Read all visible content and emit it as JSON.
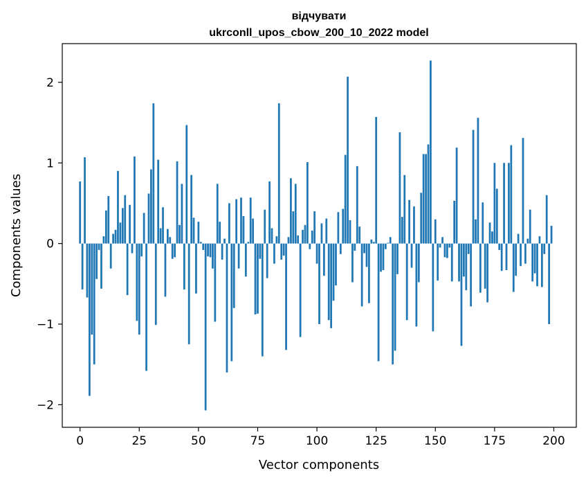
{
  "chart_data": {
    "type": "bar",
    "title": [
      "відчувати",
      "ukrconll_upos_cbow_200_10_2022 model"
    ],
    "xlabel": "Vector components",
    "ylabel": "Components values",
    "xlim": [
      -7.5,
      209.5
    ],
    "ylim": [
      -2.28,
      2.48
    ],
    "xticks": [
      0,
      25,
      50,
      75,
      100,
      125,
      150,
      175,
      200
    ],
    "yticks": [
      -2,
      -1,
      0,
      1,
      2
    ],
    "ytick_labels": [
      "−2",
      "−1",
      "0",
      "1",
      "2"
    ],
    "bar_color": "#1f77b4",
    "x": [
      0,
      1,
      2,
      3,
      4,
      5,
      6,
      7,
      8,
      9,
      10,
      11,
      12,
      13,
      14,
      15,
      16,
      17,
      18,
      19,
      20,
      21,
      22,
      23,
      24,
      25,
      26,
      27,
      28,
      29,
      30,
      31,
      32,
      33,
      34,
      35,
      36,
      37,
      38,
      39,
      40,
      41,
      42,
      43,
      44,
      45,
      46,
      47,
      48,
      49,
      50,
      51,
      52,
      53,
      54,
      55,
      56,
      57,
      58,
      59,
      60,
      61,
      62,
      63,
      64,
      65,
      66,
      67,
      68,
      69,
      70,
      71,
      72,
      73,
      74,
      75,
      76,
      77,
      78,
      79,
      80,
      81,
      82,
      83,
      84,
      85,
      86,
      87,
      88,
      89,
      90,
      91,
      92,
      93,
      94,
      95,
      96,
      97,
      98,
      99,
      100,
      101,
      102,
      103,
      104,
      105,
      106,
      107,
      108,
      109,
      110,
      111,
      112,
      113,
      114,
      115,
      116,
      117,
      118,
      119,
      120,
      121,
      122,
      123,
      124,
      125,
      126,
      127,
      128,
      129,
      130,
      131,
      132,
      133,
      134,
      135,
      136,
      137,
      138,
      139,
      140,
      141,
      142,
      143,
      144,
      145,
      146,
      147,
      148,
      149,
      150,
      151,
      152,
      153,
      154,
      155,
      156,
      157,
      158,
      159,
      160,
      161,
      162,
      163,
      164,
      165,
      166,
      167,
      168,
      169,
      170,
      171,
      172,
      173,
      174,
      175,
      176,
      177,
      178,
      179,
      180,
      181,
      182,
      183,
      184,
      185,
      186,
      187,
      188,
      189,
      190,
      191,
      192,
      193,
      194,
      195,
      196,
      197,
      198,
      199
    ],
    "values": [
      0.77,
      -0.57,
      1.07,
      -0.67,
      -1.89,
      -1.13,
      -1.5,
      -0.44,
      -0.08,
      -0.56,
      0.09,
      0.41,
      0.59,
      -0.31,
      0.12,
      0.17,
      0.9,
      0.26,
      0.44,
      0.6,
      -0.64,
      0.48,
      -0.12,
      1.08,
      -0.96,
      -1.13,
      -0.16,
      0.38,
      -1.58,
      0.62,
      0.92,
      1.74,
      -1.01,
      1.04,
      0.19,
      0.45,
      -0.66,
      0.18,
      0.08,
      -0.19,
      -0.17,
      1.02,
      0.23,
      0.74,
      -0.57,
      1.47,
      -1.25,
      0.85,
      0.32,
      -0.62,
      0.27,
      0.02,
      -0.08,
      -2.07,
      -0.16,
      -0.17,
      -0.31,
      -0.97,
      0.74,
      0.27,
      -0.2,
      0.06,
      -1.6,
      0.5,
      -1.46,
      -0.8,
      0.55,
      -0.31,
      0.57,
      0.34,
      -0.41,
      0.02,
      0.57,
      0.31,
      -0.88,
      -0.87,
      -0.19,
      -1.4,
      0.42,
      -0.43,
      0.77,
      0.19,
      -0.25,
      0.09,
      1.74,
      -0.2,
      -0.15,
      -1.32,
      0.08,
      0.81,
      0.4,
      0.74,
      0.1,
      -1.16,
      0.17,
      0.23,
      1.01,
      -0.07,
      0.16,
      0.4,
      -0.25,
      -1.0,
      0.25,
      -0.4,
      0.31,
      -0.95,
      -1.05,
      -0.71,
      -0.52,
      0.39,
      -0.13,
      0.43,
      1.1,
      2.07,
      0.29,
      -0.48,
      -0.09,
      0.96,
      0.21,
      -0.78,
      -0.12,
      -0.29,
      -0.74,
      0.05,
      0.02,
      1.57,
      -1.46,
      -0.35,
      -0.33,
      -0.07,
      0.01,
      0.08,
      -1.5,
      -1.33,
      -0.38,
      1.38,
      0.33,
      0.85,
      -0.95,
      0.54,
      -0.3,
      0.46,
      -1.03,
      -0.48,
      0.63,
      1.11,
      1.11,
      1.23,
      2.27,
      -1.09,
      0.3,
      -0.46,
      -0.05,
      0.08,
      -0.17,
      -0.18,
      -0.05,
      -0.47,
      0.53,
      1.19,
      -0.47,
      -1.27,
      -0.41,
      -0.58,
      -0.13,
      -0.78,
      1.41,
      0.3,
      1.56,
      -0.61,
      0.51,
      -0.56,
      -0.73,
      0.26,
      0.15,
      1.0,
      0.68,
      -0.08,
      -0.34,
      1.0,
      -0.33,
      1.0,
      1.22,
      -0.6,
      -0.4,
      0.12,
      -0.28,
      1.31,
      -0.25,
      0.06,
      0.42,
      -0.47,
      -0.37,
      -0.53,
      0.09,
      -0.54,
      -0.13,
      0.6,
      -1.0,
      0.22
    ]
  }
}
